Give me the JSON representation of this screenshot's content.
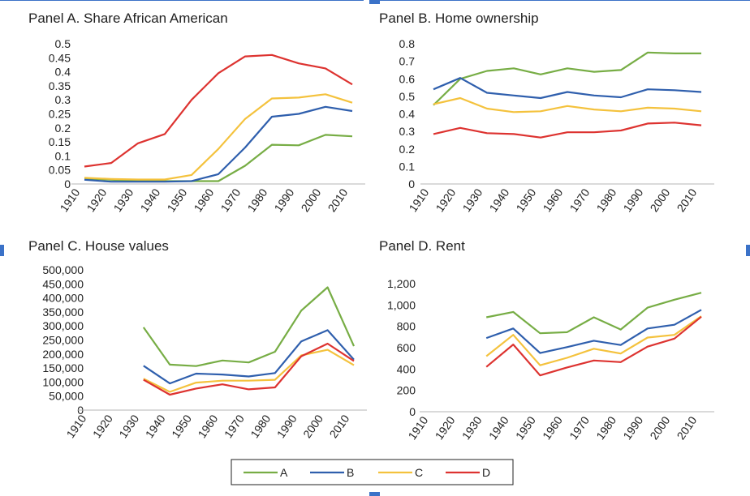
{
  "chart_data": [
    {
      "type": "line",
      "title": "Panel A. Share African American",
      "categories": [
        "1910",
        "1920",
        "1930",
        "1940",
        "1950",
        "1960",
        "1970",
        "1980",
        "1990",
        "2000",
        "2010"
      ],
      "y_ticks": [
        "0",
        "0.05",
        "0.1",
        "0.15",
        "0.2",
        "0.25",
        "0.3",
        "0.35",
        "0.4",
        "0.45",
        "0.5"
      ],
      "ylim": [
        0,
        0.5
      ],
      "grid": false,
      "series": [
        {
          "name": "A",
          "values": [
            0.02,
            0.015,
            0.012,
            0.01,
            0.01,
            0.01,
            0.065,
            0.14,
            0.138,
            0.175,
            0.17
          ]
        },
        {
          "name": "B",
          "values": [
            0.015,
            0.008,
            0.008,
            0.008,
            0.01,
            0.035,
            0.13,
            0.24,
            0.25,
            0.275,
            0.26
          ]
        },
        {
          "name": "C",
          "values": [
            0.022,
            0.018,
            0.016,
            0.016,
            0.032,
            0.125,
            0.232,
            0.305,
            0.308,
            0.32,
            0.29
          ]
        },
        {
          "name": "D",
          "values": [
            0.062,
            0.075,
            0.145,
            0.178,
            0.3,
            0.395,
            0.455,
            0.46,
            0.43,
            0.412,
            0.355
          ]
        }
      ]
    },
    {
      "type": "line",
      "title": "Panel B. Home ownership",
      "categories": [
        "1910",
        "1920",
        "1930",
        "1940",
        "1950",
        "1960",
        "1970",
        "1980",
        "1990",
        "2000",
        "2010"
      ],
      "y_ticks": [
        "0",
        "0.1",
        "0.2",
        "0.3",
        "0.4",
        "0.5",
        "0.6",
        "0.7",
        "0.8"
      ],
      "ylim": [
        0,
        0.8
      ],
      "grid": false,
      "series": [
        {
          "name": "A",
          "values": [
            0.45,
            0.6,
            0.645,
            0.66,
            0.625,
            0.66,
            0.64,
            0.65,
            0.75,
            0.745,
            0.745
          ]
        },
        {
          "name": "B",
          "values": [
            0.54,
            0.605,
            0.52,
            0.505,
            0.49,
            0.525,
            0.505,
            0.495,
            0.54,
            0.535,
            0.525
          ]
        },
        {
          "name": "C",
          "values": [
            0.455,
            0.49,
            0.43,
            0.41,
            0.415,
            0.445,
            0.425,
            0.415,
            0.435,
            0.43,
            0.415
          ]
        },
        {
          "name": "D",
          "values": [
            0.285,
            0.32,
            0.29,
            0.285,
            0.265,
            0.295,
            0.295,
            0.305,
            0.345,
            0.35,
            0.335
          ]
        }
      ]
    },
    {
      "type": "line",
      "title": "Panel C. House values",
      "categories": [
        "1910",
        "1920",
        "1930",
        "1940",
        "1950",
        "1960",
        "1970",
        "1980",
        "1990",
        "2000",
        "2010"
      ],
      "y_ticks": [
        "0",
        "50,000",
        "100,000",
        "150,000",
        "200,000",
        "250,000",
        "300,000",
        "350,000",
        "400,000",
        "450,000",
        "500,000"
      ],
      "ylim": [
        0,
        500000
      ],
      "grid": false,
      "series": [
        {
          "name": "A",
          "values": [
            null,
            null,
            295000,
            162000,
            157000,
            177000,
            170000,
            208000,
            355000,
            438000,
            228000
          ]
        },
        {
          "name": "B",
          "values": [
            null,
            null,
            158000,
            95000,
            130000,
            127000,
            120000,
            132000,
            245000,
            285000,
            180000
          ]
        },
        {
          "name": "C",
          "values": [
            null,
            null,
            112000,
            65000,
            98000,
            105000,
            105000,
            108000,
            195000,
            215000,
            160000
          ]
        },
        {
          "name": "D",
          "values": [
            null,
            null,
            108000,
            55000,
            77000,
            92000,
            74000,
            81000,
            192000,
            237000,
            175000
          ]
        }
      ]
    },
    {
      "type": "line",
      "title": "Panel D. Rent",
      "categories": [
        "1910",
        "1920",
        "1930",
        "1940",
        "1950",
        "1960",
        "1970",
        "1980",
        "1990",
        "2000",
        "2010"
      ],
      "y_ticks": [
        "0",
        "200",
        "400",
        "600",
        "800",
        "1,000",
        "1,200"
      ],
      "ylim": [
        0,
        1200
      ],
      "grid": false,
      "series": [
        {
          "name": "A",
          "values": [
            null,
            null,
            885,
            935,
            735,
            745,
            885,
            770,
            975,
            1050,
            1115
          ]
        },
        {
          "name": "B",
          "values": [
            null,
            null,
            690,
            780,
            550,
            605,
            665,
            625,
            780,
            815,
            955
          ]
        },
        {
          "name": "C",
          "values": [
            null,
            null,
            520,
            720,
            435,
            505,
            590,
            545,
            695,
            720,
            895
          ]
        },
        {
          "name": "D",
          "values": [
            null,
            null,
            420,
            630,
            340,
            415,
            480,
            465,
            610,
            685,
            890
          ]
        }
      ]
    }
  ],
  "legend": {
    "position": "bottom",
    "items": [
      {
        "label": "A",
        "color": "#77ad45"
      },
      {
        "label": "B",
        "color": "#2f5fad"
      },
      {
        "label": "C",
        "color": "#f4c23d"
      },
      {
        "label": "D",
        "color": "#dd3330"
      }
    ]
  }
}
